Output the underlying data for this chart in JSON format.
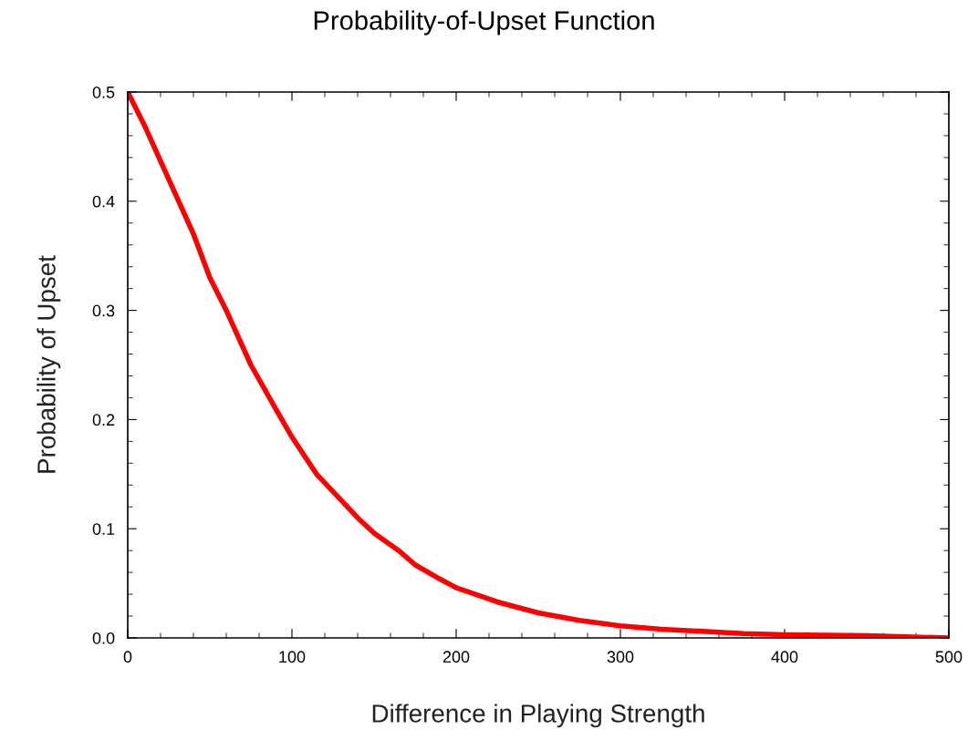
{
  "chart_data": {
    "type": "line",
    "title": "Probability-of-Upset Function",
    "xlabel": "Difference in Playing Strength",
    "ylabel": "Probability of Upset",
    "x": [
      0,
      10,
      25,
      40,
      50,
      60,
      75,
      90,
      100,
      115,
      125,
      140,
      150,
      165,
      175,
      190,
      200,
      225,
      250,
      275,
      300,
      325,
      350,
      375,
      400,
      450,
      500
    ],
    "series": [
      {
        "color": "#ff0000",
        "values": [
          0.5,
          0.47,
          0.42,
          0.37,
          0.33,
          0.3,
          0.25,
          0.21,
          0.184,
          0.15,
          0.134,
          0.11,
          0.096,
          0.08,
          0.067,
          0.054,
          0.046,
          0.033,
          0.023,
          0.016,
          0.011,
          0.008,
          0.006,
          0.004,
          0.003,
          0.002,
          0.0
        ]
      }
    ],
    "xlim": [
      0,
      500
    ],
    "xticks": [
      0,
      100,
      200,
      300,
      400,
      500
    ],
    "ylim": [
      0,
      0.5
    ],
    "yticks": [
      {
        "value": 0,
        "label": "0.0"
      },
      0.1,
      0.2,
      0.3,
      0.4,
      0.5
    ],
    "grid": false,
    "legend": false,
    "marker": "none",
    "line_style": "solid"
  }
}
